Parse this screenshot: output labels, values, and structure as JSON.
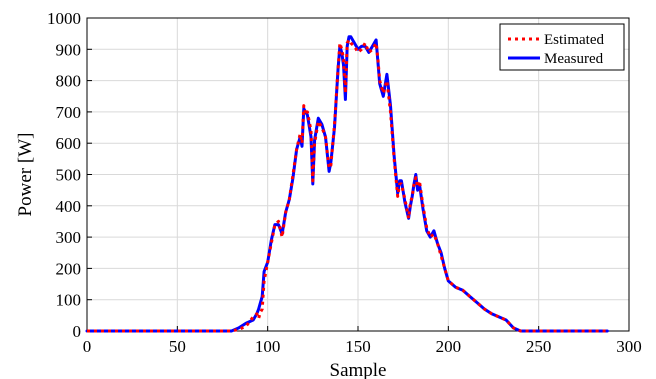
{
  "chart_data": {
    "type": "line",
    "xlabel": "Sample",
    "ylabel": "Power [W]",
    "xlim": [
      0,
      300
    ],
    "ylim": [
      0,
      1000
    ],
    "xticks": [
      0,
      50,
      100,
      150,
      200,
      250,
      300
    ],
    "yticks": [
      0,
      100,
      200,
      300,
      400,
      500,
      600,
      700,
      800,
      900,
      1000
    ],
    "grid": true,
    "legend_position": "top-right",
    "series": [
      {
        "name": "Estimated",
        "color": "#ff0000",
        "style": "dotted",
        "x": [
          0,
          20,
          40,
          60,
          70,
          75,
          80,
          84,
          88,
          90,
          92,
          94,
          95,
          96,
          97,
          98,
          100,
          102,
          104,
          106,
          108,
          110,
          112,
          114,
          116,
          118,
          119,
          120,
          121,
          122,
          124,
          125,
          126,
          128,
          130,
          132,
          134,
          135,
          137,
          139,
          140,
          141,
          142,
          143,
          144,
          145,
          146,
          148,
          150,
          152,
          154,
          156,
          158,
          160,
          161,
          162,
          164,
          166,
          168,
          170,
          172,
          173,
          174,
          176,
          178,
          179,
          180,
          181,
          182,
          183,
          184,
          186,
          188,
          190,
          192,
          194,
          196,
          198,
          200,
          204,
          208,
          212,
          216,
          220,
          224,
          228,
          232,
          236,
          240,
          250,
          260,
          270,
          280,
          288
        ],
        "y": [
          0,
          0,
          0,
          0,
          0,
          0,
          0,
          5,
          15,
          30,
          45,
          55,
          40,
          60,
          70,
          160,
          220,
          280,
          340,
          350,
          300,
          380,
          420,
          500,
          580,
          630,
          600,
          720,
          690,
          700,
          640,
          480,
          600,
          670,
          650,
          620,
          520,
          530,
          660,
          840,
          920,
          900,
          870,
          760,
          920,
          930,
          920,
          910,
          890,
          900,
          920,
          890,
          900,
          920,
          870,
          800,
          760,
          800,
          700,
          550,
          430,
          470,
          470,
          420,
          360,
          410,
          430,
          470,
          490,
          460,
          480,
          400,
          330,
          300,
          310,
          280,
          240,
          200,
          160,
          140,
          130,
          110,
          90,
          70,
          55,
          45,
          35,
          10,
          0,
          0,
          0,
          0,
          0,
          0
        ]
      },
      {
        "name": "Measured",
        "color": "#0000ff",
        "style": "solid",
        "x": [
          0,
          20,
          40,
          60,
          70,
          75,
          80,
          84,
          88,
          90,
          92,
          94,
          95,
          96,
          97,
          98,
          100,
          102,
          104,
          106,
          108,
          110,
          112,
          114,
          116,
          118,
          119,
          120,
          121,
          122,
          124,
          125,
          126,
          128,
          130,
          132,
          134,
          135,
          137,
          139,
          140,
          141,
          142,
          143,
          144,
          145,
          146,
          148,
          150,
          152,
          154,
          156,
          158,
          160,
          161,
          162,
          164,
          166,
          168,
          170,
          172,
          173,
          174,
          176,
          178,
          179,
          180,
          181,
          182,
          183,
          184,
          186,
          188,
          190,
          192,
          194,
          196,
          198,
          200,
          204,
          208,
          212,
          216,
          220,
          224,
          228,
          232,
          236,
          240,
          250,
          260,
          270,
          280,
          288
        ],
        "y": [
          0,
          0,
          0,
          0,
          0,
          0,
          0,
          10,
          25,
          30,
          35,
          55,
          70,
          90,
          110,
          190,
          220,
          290,
          340,
          340,
          310,
          380,
          420,
          490,
          580,
          620,
          590,
          710,
          700,
          690,
          620,
          470,
          610,
          680,
          660,
          620,
          510,
          540,
          650,
          840,
          910,
          890,
          850,
          740,
          910,
          940,
          940,
          920,
          900,
          910,
          910,
          890,
          910,
          930,
          860,
          790,
          750,
          820,
          720,
          560,
          440,
          480,
          480,
          410,
          360,
          400,
          430,
          470,
          500,
          450,
          470,
          390,
          320,
          300,
          320,
          280,
          250,
          200,
          160,
          140,
          130,
          110,
          90,
          70,
          55,
          45,
          35,
          10,
          0,
          0,
          0,
          0,
          0,
          0
        ]
      }
    ]
  }
}
